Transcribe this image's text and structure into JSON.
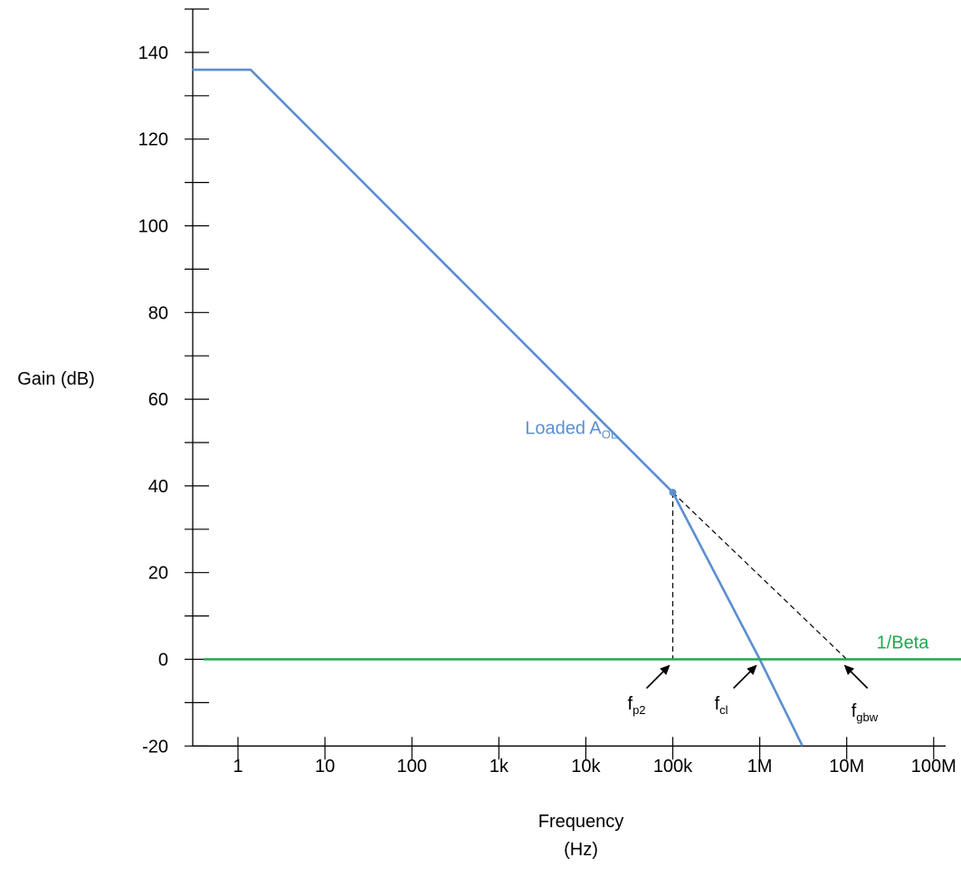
{
  "chart_data": {
    "type": "line",
    "title": "",
    "ylabel": "Gain (dB)",
    "xlabel_line1": "Frequency",
    "xlabel_line2": "(Hz)",
    "xscale": "log",
    "xlim": [
      0.3,
      300000000
    ],
    "ylim": [
      -20,
      150
    ],
    "y_ticks": [
      -20,
      0,
      20,
      40,
      60,
      80,
      100,
      120,
      140
    ],
    "y_tick_labels": [
      "-20",
      "0",
      "20",
      "40",
      "60",
      "80",
      "100",
      "120",
      "140"
    ],
    "x_ticks": [
      1,
      10,
      100,
      1000,
      10000,
      100000,
      1000000,
      10000000,
      100000000
    ],
    "x_tick_labels": [
      "1",
      "10",
      "100",
      "1k",
      "10k",
      "100k",
      "1M",
      "10M",
      "100M"
    ],
    "grid": false,
    "colors": {
      "aol": "#5B8FD0",
      "beta": "#1FA84F",
      "guide": "#000000"
    },
    "series": [
      {
        "key": "aol",
        "points": [
          [
            0.3,
            136
          ],
          [
            1.4,
            136
          ],
          [
            100000,
            38.5
          ],
          [
            1000000,
            0
          ],
          [
            3100000,
            -20
          ]
        ]
      },
      {
        "key": "beta",
        "points": [
          [
            0.4,
            0
          ],
          [
            300000000,
            0
          ]
        ]
      }
    ],
    "guides": [
      {
        "points": [
          [
            100000,
            38.5
          ],
          [
            100000,
            0
          ]
        ]
      },
      {
        "points": [
          [
            100000,
            38.5
          ],
          [
            10000000,
            0
          ]
        ]
      }
    ],
    "marker": {
      "x": 100000,
      "y": 38.5
    },
    "annotations": {
      "aol_label": {
        "text": "Loaded A",
        "sub": "OL",
        "x": 2000,
        "y": 52
      },
      "beta_label": {
        "text": "1/Beta",
        "x": 22000000,
        "y": 1.5
      }
    },
    "frequency_markers": [
      {
        "base": "f",
        "sub": "p2",
        "x": 100000
      },
      {
        "base": "f",
        "sub": "cl",
        "x": 1000000
      },
      {
        "base": "f",
        "sub": "gbw",
        "x": 10000000
      }
    ]
  }
}
